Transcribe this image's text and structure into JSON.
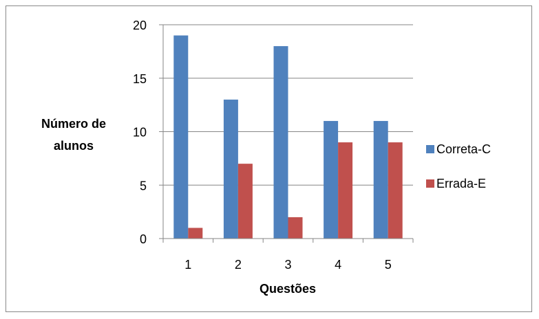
{
  "chart_data": {
    "type": "bar",
    "categories": [
      "1",
      "2",
      "3",
      "4",
      "5"
    ],
    "series": [
      {
        "name": "Correta-C",
        "values": [
          19,
          13,
          18,
          11,
          11
        ],
        "color": "#4F81BD"
      },
      {
        "name": "Errada-E",
        "values": [
          1,
          7,
          2,
          9,
          9
        ],
        "color": "#C0504D"
      }
    ],
    "title": "",
    "xlabel": "Questões",
    "ylabel_line1": "Número de",
    "ylabel_line2": "alunos",
    "ylim": [
      0,
      20
    ],
    "yticks": [
      "0",
      "5",
      "10",
      "15",
      "20"
    ],
    "grid": true,
    "legend_position": "right"
  }
}
